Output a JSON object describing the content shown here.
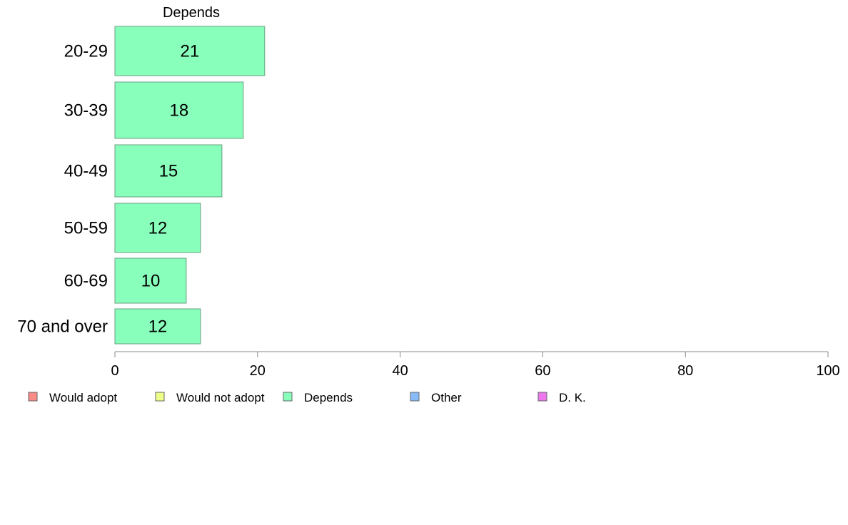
{
  "chart_data": {
    "type": "bar",
    "orientation": "horizontal",
    "series_title": "Depends",
    "categories": [
      "20-29",
      "30-39",
      "40-49",
      "50-59",
      "60-69",
      "70 and over"
    ],
    "series": [
      {
        "name": "Depends",
        "values": [
          21,
          18,
          15,
          12,
          10,
          12
        ],
        "color": "#88ffbb"
      }
    ],
    "value_labels": [
      "21",
      "18",
      "15",
      "12",
      "10",
      "12"
    ],
    "xlim": [
      0,
      100
    ],
    "x_ticks": [
      0,
      20,
      40,
      60,
      80,
      100
    ],
    "x_tick_labels": [
      "0",
      "20",
      "40",
      "60",
      "80",
      "100"
    ],
    "grid": false,
    "legend_placement": "bottom",
    "legend": [
      {
        "label": "Would adopt",
        "color": "#f88a88"
      },
      {
        "label": "Would not adopt",
        "color": "#eeff88"
      },
      {
        "label": "Depends",
        "color": "#88ffbb"
      },
      {
        "label": "Other",
        "color": "#88bbf8"
      },
      {
        "label": "D. K.",
        "color": "#ee77ee"
      }
    ]
  }
}
